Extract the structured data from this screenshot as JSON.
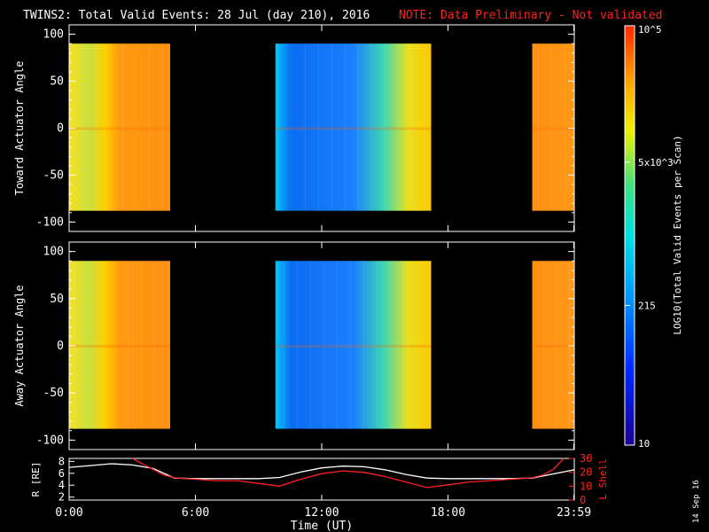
{
  "header": {
    "title": "TWINS2: Total Valid Events: 28 Jul (day 210), 2016",
    "note": "NOTE: Data Preliminary - Not validated"
  },
  "colors": {
    "background": "#000000",
    "axes": "#ffffff",
    "note": "#ff2020",
    "r_line": "#ffffff",
    "l_line": "#ff2020"
  },
  "colorbar": {
    "label": "LOG10(Total Valid Events per Scan)",
    "ticks": [
      {
        "text": "10^5",
        "value": 100000
      },
      {
        "text": "5x10^3",
        "value": 5000
      },
      {
        "text": "215",
        "value": 215
      },
      {
        "text": "10",
        "value": 10
      }
    ],
    "vmin": 10,
    "vmax": 100000,
    "scale": "log",
    "colormap": "rainbow"
  },
  "footer": {
    "stamp": "14 Sep 16"
  },
  "chart_data": [
    {
      "type": "heatmap",
      "panel": "top",
      "ylabel": "Toward Actuator Angle",
      "ylim": [
        -110,
        110
      ],
      "yticks": [
        100,
        50,
        0,
        -50,
        -100
      ],
      "xlim": [
        0,
        24
      ],
      "data_angle_range": [
        -88,
        90
      ],
      "segments": [
        {
          "start": 0,
          "end": 4.8,
          "level": "mid-high"
        },
        {
          "start": 9.8,
          "end": 17.2,
          "level": "low-to-mid"
        },
        {
          "start": 22.0,
          "end": 24.0,
          "level": "high"
        }
      ]
    },
    {
      "type": "heatmap",
      "panel": "middle",
      "ylabel": "Away Actuator Angle",
      "ylim": [
        -110,
        110
      ],
      "yticks": [
        100,
        50,
        0,
        -50,
        -100
      ],
      "xlim": [
        0,
        24
      ],
      "data_angle_range": [
        -88,
        90
      ],
      "segments": [
        {
          "start": 0,
          "end": 4.8,
          "level": "mid-high"
        },
        {
          "start": 9.8,
          "end": 17.2,
          "level": "low-to-mid"
        },
        {
          "start": 22.0,
          "end": 24.0,
          "level": "high"
        }
      ]
    },
    {
      "type": "line",
      "panel": "bottom",
      "ylabel_left": "R [RE]",
      "ylabel_right": "L Shell",
      "xlabel": "Time (UT)",
      "xticks": [
        "0:00",
        "6:00",
        "12:00",
        "18:00",
        "23:59"
      ],
      "xtick_hours": [
        0,
        6,
        12,
        18,
        23.98
      ],
      "yticks_left": [
        2,
        4,
        6,
        8
      ],
      "yticks_right": [
        0,
        10,
        20,
        30
      ],
      "ylim_left": [
        1.5,
        8.5
      ],
      "ylim_right": [
        0,
        30
      ],
      "series": [
        {
          "name": "R [RE]",
          "axis": "left",
          "x": [
            0,
            1,
            2,
            3,
            4,
            5,
            6,
            7,
            8,
            9,
            10,
            11,
            12,
            13,
            14,
            15,
            16,
            17,
            18,
            19,
            20,
            21,
            22,
            23,
            24
          ],
          "y": [
            7.0,
            7.3,
            7.6,
            7.4,
            6.8,
            5.2,
            5.1,
            5.1,
            5.1,
            5.1,
            5.3,
            6.2,
            6.9,
            7.2,
            7.1,
            6.6,
            5.8,
            5.2,
            5.1,
            5.1,
            5.1,
            5.1,
            5.2,
            5.9,
            6.6
          ]
        },
        {
          "name": "L Shell",
          "axis": "right",
          "x": [
            3.0,
            3.5,
            4.0,
            4.5,
            5.0,
            6,
            7,
            8,
            9,
            10,
            11,
            12,
            13,
            14,
            15,
            16,
            17,
            18,
            19,
            20,
            21,
            22,
            22.5,
            23,
            23.5
          ],
          "y": [
            30,
            26,
            22,
            18,
            16,
            15,
            14,
            14,
            12,
            10,
            15,
            19,
            21,
            20,
            17,
            13,
            9,
            11,
            13,
            14,
            15,
            16,
            18,
            22,
            30
          ]
        }
      ]
    }
  ]
}
